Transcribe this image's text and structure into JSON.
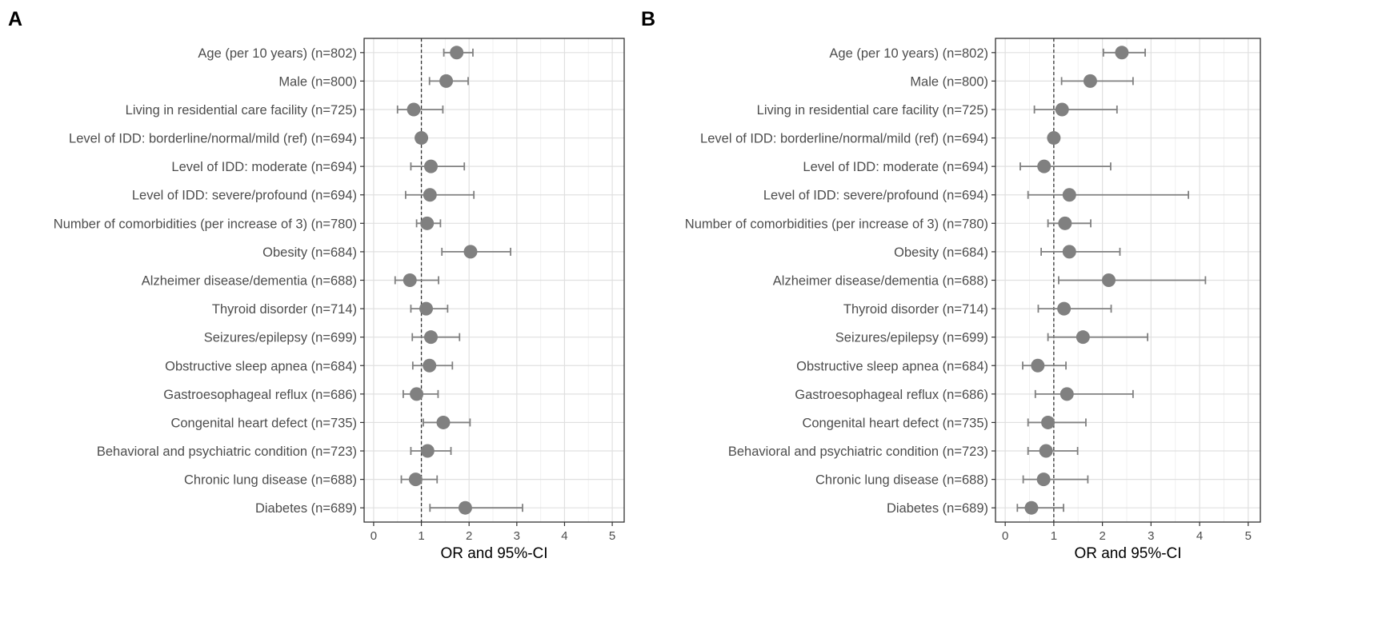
{
  "chart_data": [
    {
      "type": "forest",
      "panel_label": "A",
      "xlabel": "OR and 95%-CI",
      "xlim": [
        -0.2,
        5.25
      ],
      "xticks": [
        0,
        1,
        2,
        3,
        4,
        5
      ],
      "reference_line": 1,
      "grid": true,
      "categories": [
        "Age (per 10 years) (n=802)",
        "Male (n=800)",
        "Living in residential care facility (n=725)",
        "Level of IDD: borderline/normal/mild (ref) (n=694)",
        "Level of IDD: moderate (n=694)",
        "Level of IDD: severe/profound (n=694)",
        "Number of comorbidities (per increase of 3) (n=780)",
        "Obesity (n=684)",
        "Alzheimer disease/dementia (n=688)",
        "Thyroid disorder (n=714)",
        "Seizures/epilepsy (n=699)",
        "Obstructive sleep apnea (n=684)",
        "Gastroesophageal reflux (n=686)",
        "Congenital heart defect (n=735)",
        "Behavioral and psychiatric condition (n=723)",
        "Chronic lung disease (n=688)",
        "Diabetes (n=689)"
      ],
      "or": [
        1.74,
        1.52,
        0.84,
        1.0,
        1.2,
        1.18,
        1.12,
        2.03,
        0.76,
        1.1,
        1.2,
        1.17,
        0.9,
        1.46,
        1.13,
        0.88,
        1.92
      ],
      "ci_low": [
        1.47,
        1.17,
        0.5,
        null,
        0.78,
        0.67,
        0.9,
        1.43,
        0.45,
        0.78,
        0.81,
        0.82,
        0.62,
        1.04,
        0.78,
        0.58,
        1.18
      ],
      "ci_high": [
        2.08,
        1.98,
        1.45,
        null,
        1.9,
        2.1,
        1.4,
        2.87,
        1.36,
        1.55,
        1.8,
        1.65,
        1.35,
        2.02,
        1.62,
        1.33,
        3.12
      ]
    },
    {
      "type": "forest",
      "panel_label": "B",
      "xlabel": "OR and 95%-CI",
      "xlim": [
        -0.2,
        5.25
      ],
      "xticks": [
        0,
        1,
        2,
        3,
        4,
        5
      ],
      "reference_line": 1,
      "grid": true,
      "categories": [
        "Age (per 10 years) (n=802)",
        "Male (n=800)",
        "Living in residential care facility (n=725)",
        "Level of IDD: borderline/normal/mild (ref) (n=694)",
        "Level of IDD: moderate (n=694)",
        "Level of IDD: severe/profound (n=694)",
        "Number of comorbidities (per increase of 3) (n=780)",
        "Obesity (n=684)",
        "Alzheimer disease/dementia (n=688)",
        "Thyroid disorder (n=714)",
        "Seizures/epilepsy (n=699)",
        "Obstructive sleep apnea (n=684)",
        "Gastroesophageal reflux (n=686)",
        "Congenital heart defect (n=735)",
        "Behavioral and psychiatric condition (n=723)",
        "Chronic lung disease (n=688)",
        "Diabetes (n=689)"
      ],
      "or": [
        2.4,
        1.75,
        1.17,
        1.0,
        0.8,
        1.32,
        1.23,
        1.32,
        2.13,
        1.21,
        1.6,
        0.67,
        1.27,
        0.88,
        0.84,
        0.79,
        0.54
      ],
      "ci_low": [
        2.02,
        1.16,
        0.6,
        null,
        0.31,
        0.47,
        0.88,
        0.74,
        1.1,
        0.68,
        0.88,
        0.36,
        0.62,
        0.47,
        0.47,
        0.37,
        0.25
      ],
      "ci_high": [
        2.88,
        2.63,
        2.3,
        null,
        2.17,
        3.77,
        1.76,
        2.36,
        4.12,
        2.18,
        2.93,
        1.25,
        2.63,
        1.66,
        1.49,
        1.7,
        1.2
      ]
    }
  ]
}
